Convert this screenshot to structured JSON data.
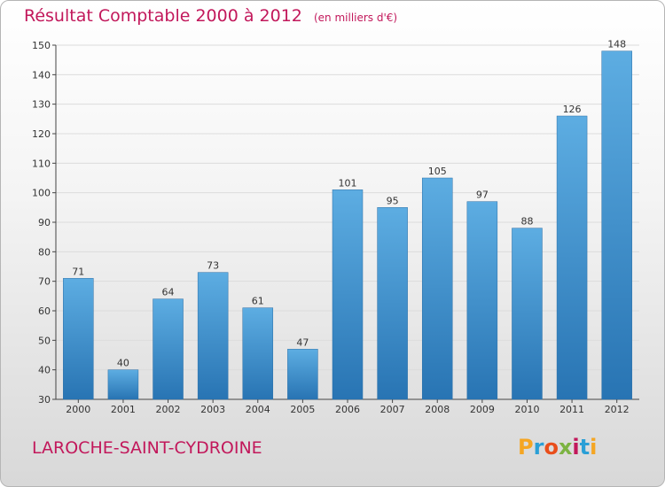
{
  "header": {
    "title": "Résultat Comptable 2000 à 2012",
    "subtitle": "(en milliers d'€)"
  },
  "footer": {
    "location": "LAROCHE-SAINT-CYDROINE",
    "brand": "Proxiti",
    "brand_colors": [
      "#f5a623",
      "#2a9fd6",
      "#e94e1b",
      "#7cb342",
      "#c2185b",
      "#2a9fd6",
      "#f5a623"
    ]
  },
  "chart_data": {
    "type": "bar",
    "title": "Résultat Comptable 2000 à 2012",
    "subtitle": "(en milliers d'€)",
    "categories": [
      "2000",
      "2001",
      "2002",
      "2003",
      "2004",
      "2005",
      "2006",
      "2007",
      "2008",
      "2009",
      "2010",
      "2011",
      "2012"
    ],
    "values": [
      71,
      40,
      64,
      73,
      61,
      47,
      101,
      95,
      105,
      97,
      88,
      126,
      148
    ],
    "data_labels": [
      "71",
      "40",
      "64",
      "73",
      "61",
      "47",
      "101",
      "95",
      "105",
      "97",
      "88",
      "126",
      "148"
    ],
    "ylim": [
      30,
      150
    ],
    "yticks": [
      30,
      40,
      50,
      60,
      70,
      80,
      90,
      100,
      110,
      120,
      130,
      140,
      150
    ],
    "grid": true,
    "bar_color_top": "#5dade2",
    "bar_color_bottom": "#2874b3",
    "title_color": "#c2185b"
  }
}
